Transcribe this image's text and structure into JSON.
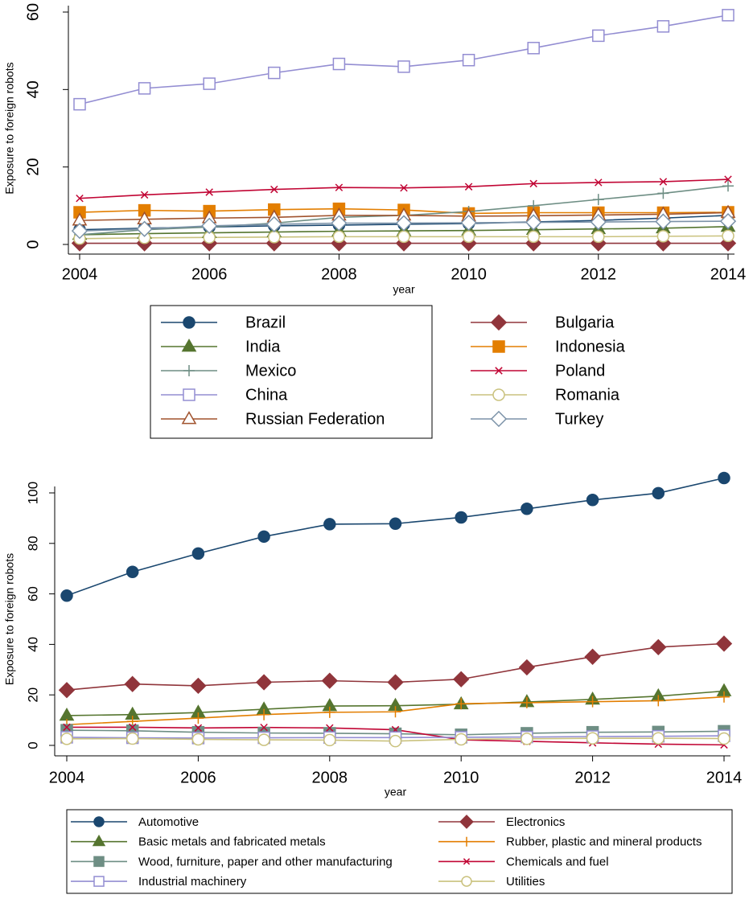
{
  "chart_data": [
    {
      "type": "line",
      "y_label": "Exposure to foreign robots",
      "x_label": "year",
      "x": [
        2004,
        2005,
        2006,
        2007,
        2008,
        2009,
        2010,
        2011,
        2012,
        2013,
        2014
      ],
      "xlim": [
        2004,
        2014
      ],
      "xticks": [
        2004,
        2006,
        2008,
        2010,
        2012,
        2014
      ],
      "ylim": [
        0,
        60
      ],
      "yticks": [
        0,
        20,
        40,
        60
      ],
      "grid": false,
      "legend": "bottom",
      "series": [
        {
          "name": "Brazil",
          "color": "#1a476f",
          "marker": "circle",
          "values": [
            3.8,
            4.2,
            4.5,
            4.8,
            5.0,
            5.2,
            5.4,
            5.8,
            6.2,
            6.8,
            7.5
          ]
        },
        {
          "name": "Bulgaria",
          "color": "#90353b",
          "marker": "diamond",
          "values": [
            0.3,
            0.3,
            0.3,
            0.3,
            0.3,
            0.3,
            0.3,
            0.3,
            0.3,
            0.3,
            0.3
          ]
        },
        {
          "name": "India",
          "color": "#55752f",
          "marker": "triangle",
          "values": [
            2.5,
            2.8,
            3.0,
            3.2,
            3.4,
            3.5,
            3.6,
            3.8,
            4.0,
            4.2,
            4.6
          ]
        },
        {
          "name": "Indonesia",
          "color": "#e37e00",
          "marker": "square",
          "values": [
            8.3,
            8.8,
            8.6,
            9.0,
            9.2,
            8.9,
            8.0,
            8.2,
            8.2,
            8.2,
            8.3
          ]
        },
        {
          "name": "Mexico",
          "color": "#6e8e84",
          "marker": "plus",
          "values": [
            2.5,
            3.8,
            4.5,
            5.5,
            7.0,
            7.5,
            8.5,
            10.0,
            11.6,
            13.2,
            15.1
          ]
        },
        {
          "name": "Poland",
          "color": "#c10534",
          "marker": "x",
          "values": [
            11.9,
            12.8,
            13.5,
            14.2,
            14.7,
            14.6,
            14.9,
            15.7,
            16.0,
            16.2,
            16.8
          ]
        },
        {
          "name": "China",
          "color": "#938dd2",
          "marker": "hollow-square",
          "values": [
            36.2,
            40.3,
            41.5,
            44.3,
            46.6,
            45.9,
            47.6,
            50.7,
            53.9,
            56.3,
            59.2
          ]
        },
        {
          "name": "Romania",
          "color": "#cac27e",
          "marker": "hollow-circle",
          "values": [
            1.5,
            1.7,
            1.8,
            1.9,
            2.0,
            2.0,
            2.0,
            2.0,
            2.0,
            2.1,
            2.2
          ]
        },
        {
          "name": "Russian Federation",
          "color": "#a0522d",
          "marker": "hollow-triangle",
          "values": [
            6.2,
            6.5,
            6.8,
            7.0,
            7.5,
            7.5,
            7.3,
            7.4,
            7.6,
            7.8,
            8.2
          ]
        },
        {
          "name": "Turkey",
          "color": "#7b92a8",
          "marker": "hollow-diamond",
          "values": [
            3.5,
            4.0,
            4.8,
            5.2,
            5.5,
            5.5,
            5.6,
            5.7,
            5.8,
            5.9,
            6.0
          ]
        }
      ]
    },
    {
      "type": "line",
      "y_label": "Exposure to foreign robots",
      "x_label": "year",
      "x": [
        2004,
        2005,
        2006,
        2007,
        2008,
        2009,
        2010,
        2011,
        2012,
        2013,
        2014
      ],
      "xlim": [
        2004,
        2014
      ],
      "xticks": [
        2004,
        2006,
        2008,
        2010,
        2012,
        2014
      ],
      "ylim": [
        0,
        100
      ],
      "yticks": [
        0,
        20,
        40,
        60,
        80,
        100
      ],
      "grid": false,
      "legend": "bottom",
      "series": [
        {
          "name": "Automotive",
          "color": "#1a476f",
          "marker": "circle",
          "values": [
            59.3,
            68.7,
            76.0,
            82.7,
            87.6,
            87.8,
            90.3,
            93.7,
            97.2,
            99.9,
            105.9
          ]
        },
        {
          "name": "Electronics",
          "color": "#90353b",
          "marker": "diamond",
          "values": [
            21.9,
            24.3,
            23.6,
            25.0,
            25.6,
            25.0,
            26.2,
            30.9,
            35.1,
            38.9,
            40.3
          ]
        },
        {
          "name": "Basic metals and fabricated metals",
          "color": "#55752f",
          "marker": "triangle",
          "values": [
            11.8,
            12.2,
            13.0,
            14.3,
            15.6,
            15.7,
            16.3,
            17.2,
            18.2,
            19.5,
            21.5
          ]
        },
        {
          "name": "Rubber, plastic and mineral products",
          "color": "#e37e00",
          "marker": "plus",
          "values": [
            8.2,
            9.5,
            10.8,
            12.2,
            13.1,
            13.3,
            16.5,
            16.9,
            17.3,
            17.7,
            19.2
          ]
        },
        {
          "name": "Wood, furniture, paper and other manufacturing",
          "color": "#6e8e84",
          "marker": "square",
          "values": [
            6.0,
            5.8,
            5.2,
            4.9,
            4.8,
            4.6,
            4.2,
            4.8,
            5.2,
            5.3,
            5.6
          ]
        },
        {
          "name": "Chemicals and fuel",
          "color": "#c10534",
          "marker": "x",
          "values": [
            7.2,
            7.2,
            6.9,
            7.1,
            6.9,
            6.2,
            2.2,
            1.6,
            1.0,
            0.5,
            0.2
          ]
        },
        {
          "name": "Industrial machinery",
          "color": "#938dd2",
          "marker": "hollow-square",
          "values": [
            3.2,
            3.0,
            2.9,
            3.0,
            3.1,
            3.1,
            3.2,
            3.3,
            3.5,
            3.6,
            3.8
          ]
        },
        {
          "name": "Utilities",
          "color": "#cac27e",
          "marker": "hollow-circle",
          "values": [
            2.6,
            2.7,
            2.4,
            2.2,
            2.1,
            1.7,
            2.4,
            2.6,
            2.8,
            2.8,
            2.7
          ]
        }
      ]
    }
  ]
}
